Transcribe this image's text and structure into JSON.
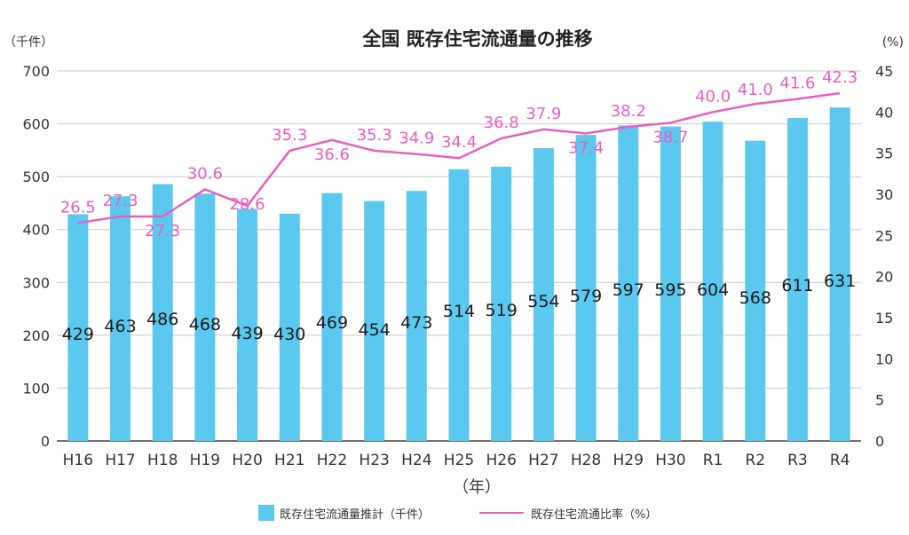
{
  "chart_data": {
    "type": "bar",
    "title": "全国 既存住宅流通量の推移",
    "xlabel": "（年）",
    "ylabel_left": "（千件）",
    "ylabel_right": "(%)",
    "categories": [
      "H16",
      "H17",
      "H18",
      "H19",
      "H20",
      "H21",
      "H22",
      "H23",
      "H24",
      "H25",
      "H26",
      "H27",
      "H28",
      "H29",
      "H30",
      "R1",
      "R2",
      "R3",
      "R4"
    ],
    "series": [
      {
        "name": "既存住宅流通量推計（千件）",
        "type": "bar",
        "axis": "left",
        "color": "#5bc8f0",
        "values": [
          429,
          463,
          486,
          468,
          439,
          430,
          469,
          454,
          473,
          514,
          519,
          554,
          579,
          597,
          595,
          604,
          568,
          611,
          631
        ]
      },
      {
        "name": "既存住宅流通比率（%）",
        "type": "line",
        "axis": "right",
        "color": "#e85fbf",
        "values": [
          26.5,
          27.3,
          27.3,
          30.6,
          28.6,
          35.3,
          36.6,
          35.3,
          34.9,
          34.4,
          36.8,
          37.9,
          37.4,
          38.2,
          38.7,
          40.0,
          41.0,
          41.6,
          42.3
        ]
      }
    ],
    "bar_labels": [
      "429",
      "463",
      "486",
      "468",
      "439",
      "430",
      "469",
      "454",
      "473",
      "514",
      "519",
      "554",
      "579",
      "597",
      "595",
      "604",
      "568",
      "611",
      "631"
    ],
    "line_labels": [
      "26.5",
      "27.3",
      "27.3",
      "30.6",
      "28.6",
      "35.3",
      "36.6",
      "35.3",
      "34.9",
      "34.4",
      "36.8",
      "37.9",
      "37.4",
      "38.2",
      "38.7",
      "40.0",
      "41.0",
      "41.6",
      "42.3"
    ],
    "ylim_left": [
      0,
      700
    ],
    "yticks_left": [
      0,
      100,
      200,
      300,
      400,
      500,
      600,
      700
    ],
    "ylim_right": [
      0,
      45
    ],
    "yticks_right": [
      0,
      5,
      10,
      15,
      20,
      25,
      30,
      35,
      40,
      45
    ],
    "grid": true,
    "legend": "bottom-center"
  }
}
